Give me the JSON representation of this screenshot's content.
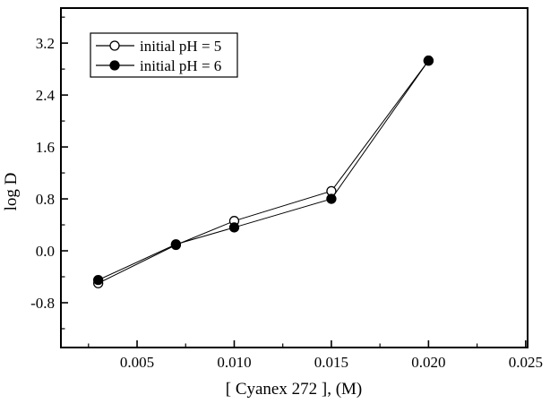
{
  "chart_data": {
    "type": "line",
    "title": "",
    "xlabel": "[ Cyanex 272 ], (M)",
    "ylabel": "log D",
    "xlim": [
      0.00108,
      0.0251
    ],
    "ylim": [
      -1.49,
      3.74
    ],
    "grid": false,
    "legend_position": "top-left-inside",
    "x_major_ticks": [
      0.005,
      0.01,
      0.015,
      0.02,
      0.025
    ],
    "x_major_labels": [
      "0.005",
      "0.010",
      "0.015",
      "0.020",
      "0.025"
    ],
    "x_minor_ticks": [
      0.0025,
      0.0075,
      0.0125,
      0.0175,
      0.0225
    ],
    "y_major_ticks": [
      -0.8,
      0.0,
      0.8,
      1.6,
      2.4,
      3.2
    ],
    "y_major_labels": [
      "-0.8",
      "0.0",
      "0.8",
      "1.6",
      "2.4",
      "3.2"
    ],
    "y_minor_ticks": [
      -1.2,
      -0.4,
      0.4,
      1.2,
      2.0,
      2.8,
      3.6
    ],
    "x": [
      0.003,
      0.007,
      0.01,
      0.015,
      0.02
    ],
    "series": [
      {
        "name": "initial pH = 5",
        "marker": "open-circle",
        "values": [
          -0.5,
          0.09,
          0.46,
          0.92,
          2.93
        ]
      },
      {
        "name": "initial pH = 6",
        "marker": "filled-circle",
        "values": [
          -0.45,
          0.1,
          0.36,
          0.8,
          2.93
        ]
      }
    ],
    "colors": {
      "line": "#000000",
      "marker_stroke": "#000000",
      "marker_open_fill": "#ffffff",
      "marker_filled_fill": "#000000",
      "background": "#ffffff",
      "axis": "#000000"
    }
  }
}
